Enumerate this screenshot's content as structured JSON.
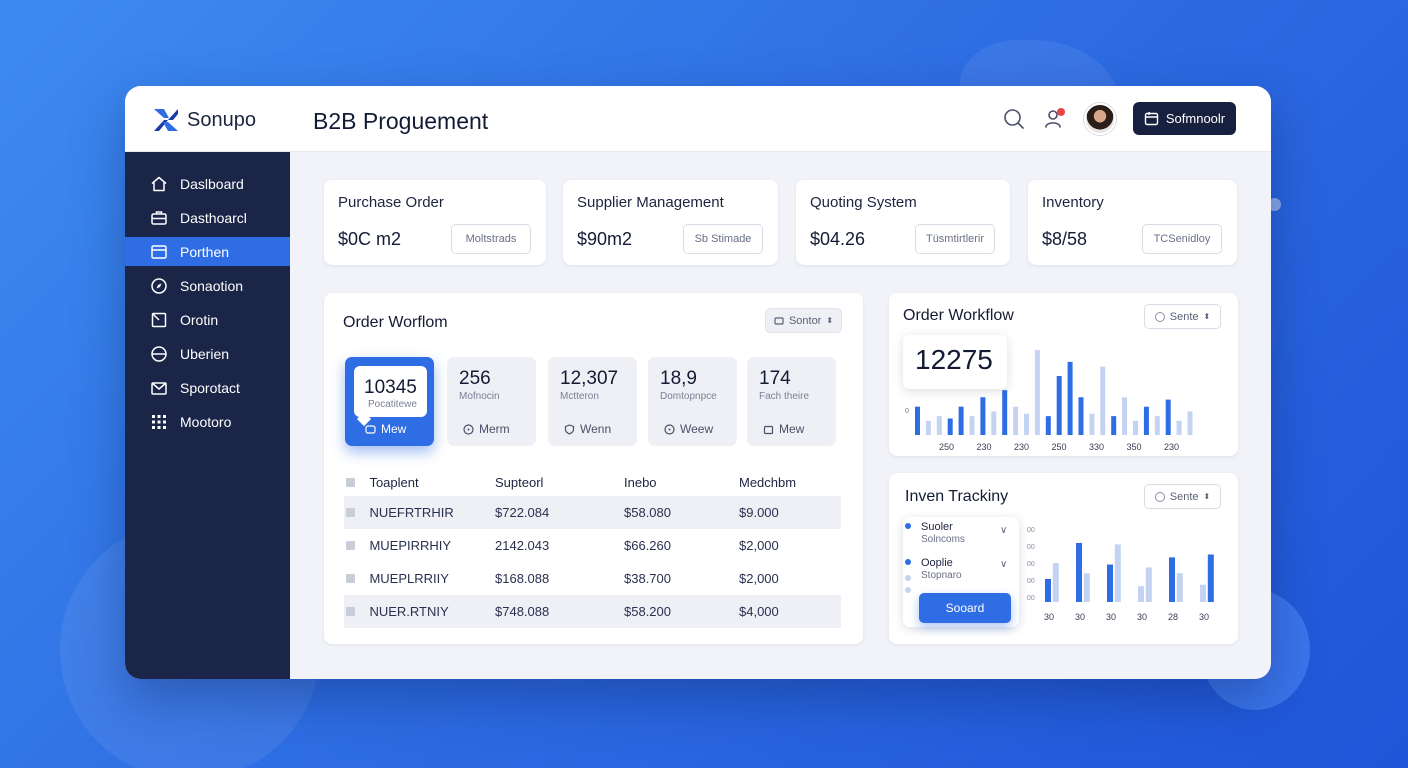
{
  "app": {
    "name": "Sonupo",
    "title": "B2B Proguement"
  },
  "header": {
    "action_button": "Sofmnoolr"
  },
  "sidebar": {
    "items": [
      {
        "label": "Daslboard",
        "icon": "home-icon"
      },
      {
        "label": "Dasthoarcl",
        "icon": "briefcase-icon"
      },
      {
        "label": "Porthen",
        "icon": "window-icon",
        "active": true
      },
      {
        "label": "Sonaotion",
        "icon": "compass-icon"
      },
      {
        "label": "Orotin",
        "icon": "box-icon"
      },
      {
        "label": "Uberien",
        "icon": "globe-icon"
      },
      {
        "label": "Sporotact",
        "icon": "mail-icon"
      },
      {
        "label": "Mootoro",
        "icon": "grid-icon"
      }
    ]
  },
  "stats": [
    {
      "title": "Purchase Order",
      "value": "$0C m2",
      "button": "Moltstrads"
    },
    {
      "title": "Supplier Management",
      "value": "$90m2",
      "button": "Sb Stimade"
    },
    {
      "title": "Quoting System",
      "value": "$04.26",
      "button": "Tüsmtirtlerir"
    },
    {
      "title": "Inventory",
      "value": "$8/58",
      "button": "TCSenidloy"
    }
  ],
  "workflow": {
    "title": "Order Worflom",
    "sort_label": "Sontor",
    "tiles": [
      {
        "value": "10345",
        "sub": "Pocatitewe",
        "foot": "Mew",
        "active": true
      },
      {
        "value": "256",
        "sub": "Mofnocin",
        "foot": "Merm"
      },
      {
        "value": "12,307",
        "sub": "Mctteron",
        "foot": "Wenn"
      },
      {
        "value": "18,9",
        "sub": "Domtopnpce",
        "foot": "Weew"
      },
      {
        "value": "174",
        "sub": "Fach theire",
        "foot": "Mew"
      }
    ],
    "table": {
      "headers": [
        "Toaplent",
        "Supteorl",
        "Inebo",
        "Medchbm"
      ],
      "rows": [
        [
          "NUEFRTRHIR",
          "$722.084",
          "$58.080",
          "$9.000"
        ],
        [
          "MUEPIRRHIY",
          "2142.043",
          "$66.260",
          "$2,000"
        ],
        [
          "MUEPLRRIIY",
          "$168.088",
          "$38.700",
          "$2,000"
        ],
        [
          "NUER.RTNIY",
          "$748.088",
          "$58.200",
          "$4,000"
        ]
      ]
    }
  },
  "order_workflow_chart": {
    "title": "Order Workflow",
    "sort_label": "Sente",
    "highlight": "12275",
    "axis_zero": "0",
    "x_labels": [
      "250",
      "230",
      "230",
      "250",
      "330",
      "350",
      "230"
    ]
  },
  "inventory_tracking": {
    "title": "Inven Trackiny",
    "sort_label": "Sente",
    "dropdown": {
      "row1_label": "Suoler",
      "row1_sub": "Solncoms",
      "row2_label": "Ooplie",
      "row2_sub": "Stopnaro",
      "button": "Sooard"
    },
    "y_labels": [
      "00",
      "00",
      "00",
      "00",
      "00"
    ],
    "x_labels": [
      "30",
      "30",
      "30",
      "30",
      "28",
      "30"
    ]
  },
  "colors": {
    "accent": "#2f6de4",
    "sidebar": "#1b2547",
    "dark_button": "#17203f",
    "bar_light": "#c5d3f3"
  },
  "chart_data": [
    {
      "type": "bar",
      "name_ref": "order_workflow_chart",
      "values": [
        1.2,
        0.6,
        0.8,
        0.7,
        1.2,
        0.8,
        1.6,
        1.0,
        1.9,
        1.2,
        0.9,
        3.6,
        0.8,
        2.5,
        3.1,
        1.6,
        0.9,
        2.9,
        0.8,
        1.6,
        0.6,
        1.2,
        0.8,
        1.5,
        0.6,
        1.0
      ],
      "strong": [
        true,
        false,
        false,
        true,
        true,
        false,
        true,
        false,
        true,
        false,
        false,
        false,
        true,
        true,
        true,
        true,
        false,
        false,
        true,
        false,
        false,
        true,
        false,
        true,
        false,
        false
      ],
      "ylim": [
        0,
        5
      ]
    },
    {
      "type": "bar",
      "name_ref": "inventory_tracking",
      "values": [
        1.6,
        2.7,
        4.1,
        2.0,
        2.6,
        4.0,
        1.1,
        2.4,
        3.1,
        2.0,
        1.2,
        3.3
      ],
      "strong": [
        true,
        false,
        true,
        false,
        true,
        false,
        false,
        false,
        true,
        false,
        false,
        true
      ],
      "ylim": [
        0,
        5
      ]
    }
  ]
}
